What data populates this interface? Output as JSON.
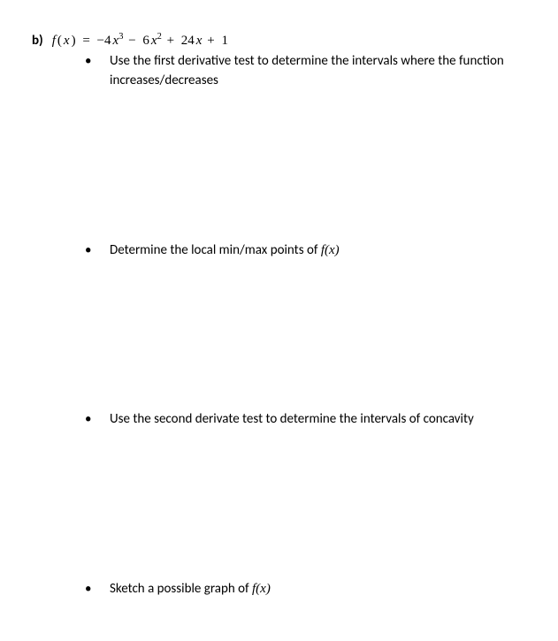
{
  "problem": {
    "part_label": "b)",
    "func_symbol": "f",
    "func_var": "x",
    "equals": "=",
    "expression_parts": {
      "t1_coef": "−4",
      "t1_var": "x",
      "t1_exp": "3",
      "t2_op": "−",
      "t2_coef": "6",
      "t2_var": "x",
      "t2_exp": "2",
      "t3_op": "+",
      "t3_coef": "24",
      "t3_var": "x",
      "t4_op": "+",
      "t4_const": "1"
    }
  },
  "bullets": [
    {
      "text_before": "Use the first derivative test to determine the intervals where the function increases/decreases",
      "math": ""
    },
    {
      "text_before": "Determine the local min/max points of ",
      "math": "f(x)"
    },
    {
      "text_before": "Use the second derivate test to determine the intervals of concavity",
      "math": ""
    },
    {
      "text_before": "Sketch a possible graph of ",
      "math": "f(x)"
    }
  ]
}
